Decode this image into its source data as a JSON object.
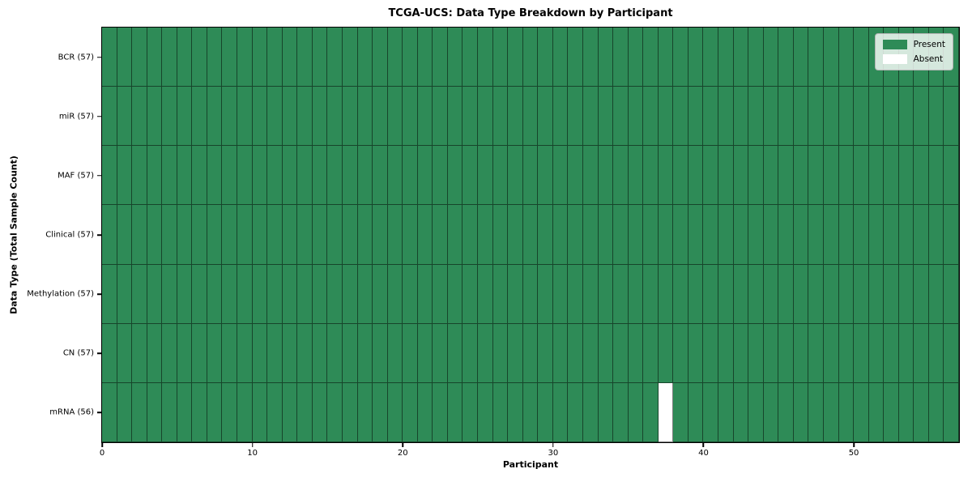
{
  "figure": {
    "background": "#ffffff"
  },
  "chart_data": {
    "type": "heatmap",
    "title": "TCGA-UCS: Data Type Breakdown by Participant",
    "xlabel": "Participant",
    "ylabel": "Data Type (Total Sample Count)",
    "n_participants": 57,
    "xlim": [
      0,
      57
    ],
    "x_ticks": [
      0,
      10,
      20,
      30,
      40,
      50
    ],
    "grid": "cell-borders",
    "legend_position": "upper right",
    "legend": [
      {
        "label": "Present",
        "color": "#2e8b57"
      },
      {
        "label": "Absent",
        "color": "#ffffff"
      }
    ],
    "rows": [
      {
        "name": "BCR",
        "label": "BCR (57)",
        "total": 57,
        "absent_participants": []
      },
      {
        "name": "miR",
        "label": "miR (57)",
        "total": 57,
        "absent_participants": []
      },
      {
        "name": "MAF",
        "label": "MAF (57)",
        "total": 57,
        "absent_participants": []
      },
      {
        "name": "Clinical",
        "label": "Clinical (57)",
        "total": 57,
        "absent_participants": []
      },
      {
        "name": "Methylation",
        "label": "Methylation (57)",
        "total": 57,
        "absent_participants": []
      },
      {
        "name": "CN",
        "label": "CN (57)",
        "total": 57,
        "absent_participants": []
      },
      {
        "name": "mRNA",
        "label": "mRNA (56)",
        "total": 56,
        "absent_participants": [
          37
        ]
      }
    ],
    "colors": {
      "present": "#2e8b57",
      "absent": "#ffffff",
      "cell_edge": "rgba(0,0,0,0.5)",
      "axes_edge": "#000000"
    }
  }
}
